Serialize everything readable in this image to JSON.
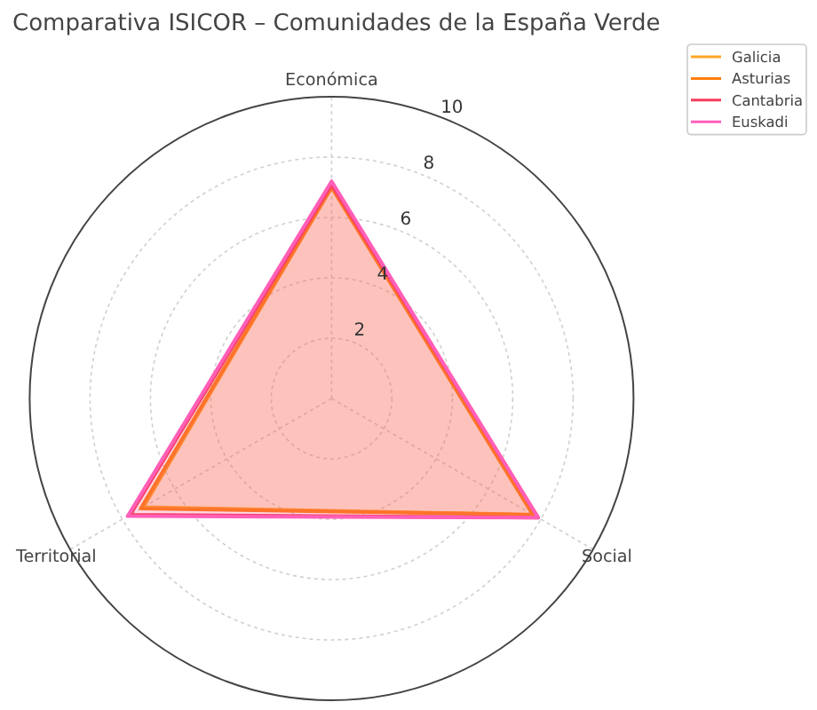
{
  "chart_data": {
    "type": "radar",
    "title": "Comparativa ISICOR – Comunidades de la España Verde",
    "categories": [
      "Económica",
      "Social",
      "Territorial"
    ],
    "ylim": [
      0,
      10
    ],
    "yticks": [
      2,
      4,
      6,
      8,
      10
    ],
    "grid": true,
    "legend": "top right",
    "series": [
      {
        "name": "Galicia",
        "color": "#ffa726",
        "values": [
          7.0,
          7.7,
          7.2
        ]
      },
      {
        "name": "Asturias",
        "color": "#ff7f0e",
        "values": [
          7.0,
          7.7,
          7.3
        ]
      },
      {
        "name": "Cantabria",
        "color": "#f63d5c",
        "values": [
          7.1,
          7.9,
          7.7
        ]
      },
      {
        "name": "Euskadi",
        "color": "#ff5fb8",
        "values": [
          7.2,
          7.9,
          7.8
        ]
      }
    ]
  }
}
